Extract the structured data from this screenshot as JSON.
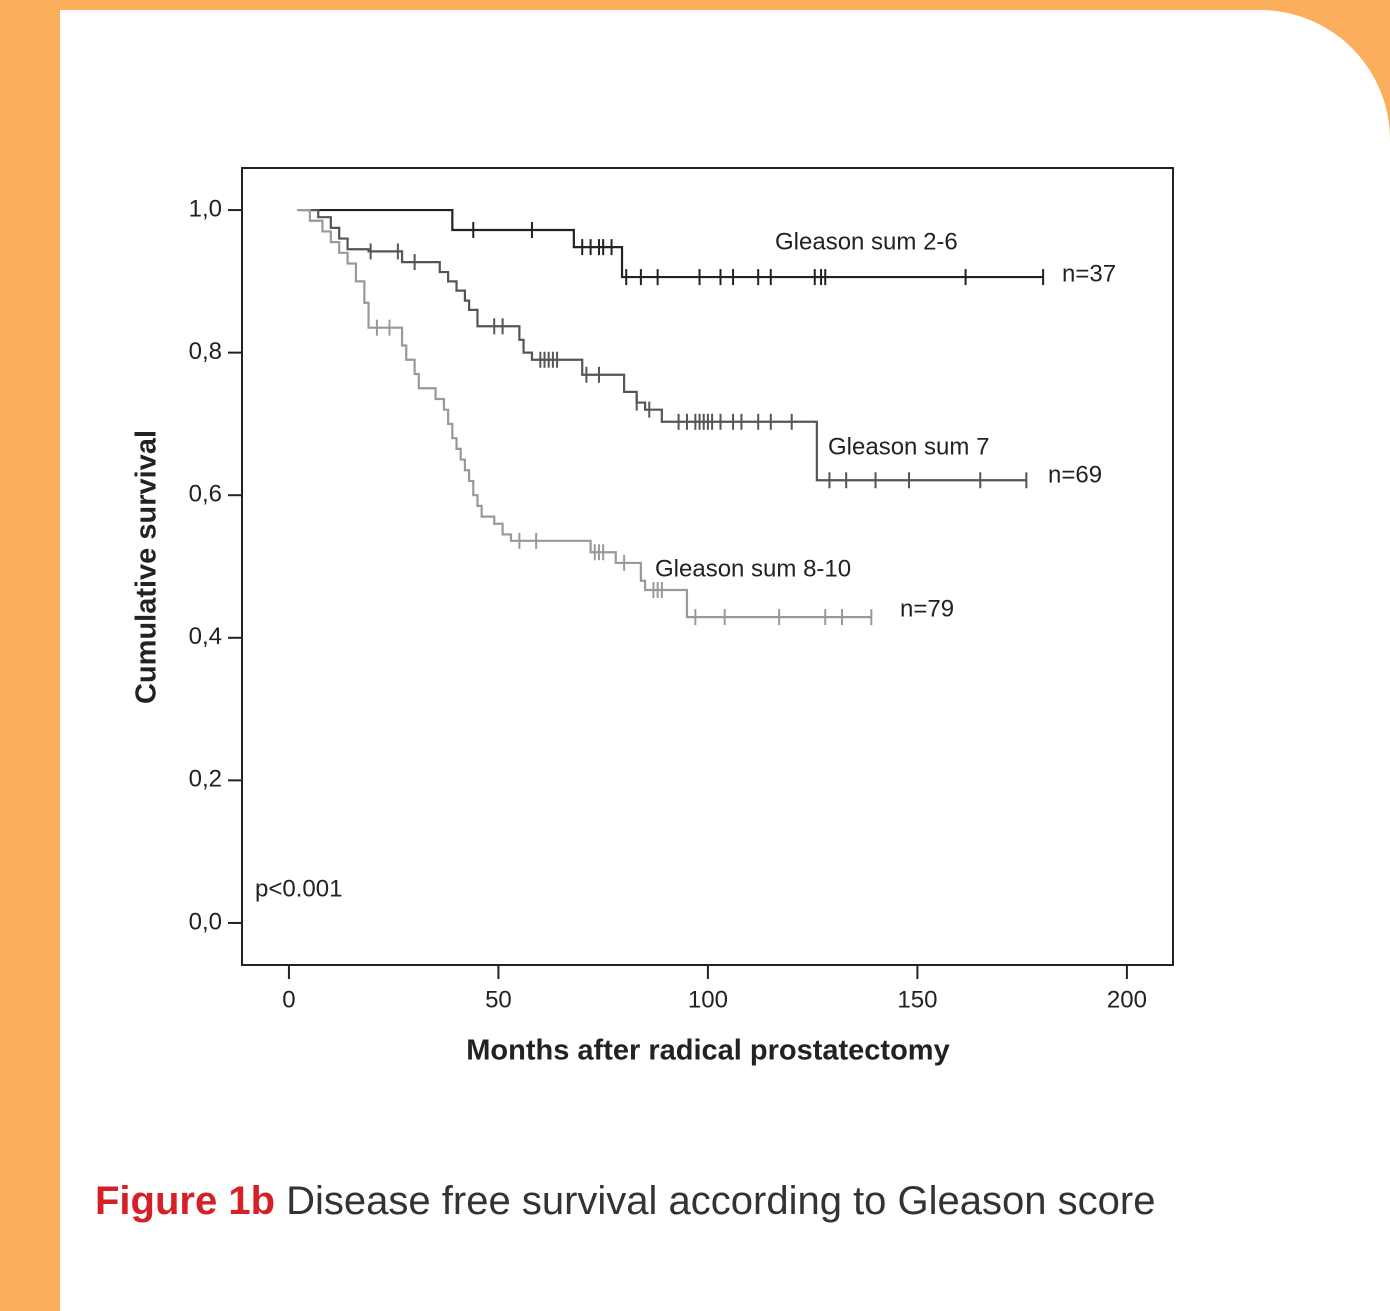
{
  "chart_data": {
    "type": "step",
    "xlabel": "Months after radical prostatectomy",
    "ylabel": "Cumulative survival",
    "xlim": [
      -11.2,
      211
    ],
    "ylim": [
      -0.059,
      1.059
    ],
    "xticks": [
      0,
      50,
      100,
      150,
      200
    ],
    "yticks": [
      {
        "value": 0,
        "label": "0,0"
      },
      {
        "value": 0.2,
        "label": "0,2"
      },
      {
        "value": 0.4,
        "label": "0,4"
      },
      {
        "value": 0.6,
        "label": "0,6"
      },
      {
        "value": 0.8,
        "label": "0,8"
      },
      {
        "value": 1,
        "label": "1,0"
      }
    ],
    "annotation": "p<0.001",
    "series": [
      {
        "name": "Gleason sum 2-6",
        "n_label": "n=37",
        "color": "#222222",
        "x": [
          3,
          39,
          68,
          79.5,
          180
        ],
        "values": [
          1.0,
          0.972,
          0.948,
          0.906,
          0.906
        ],
        "censored": [
          44,
          58,
          70,
          72,
          74,
          75,
          77,
          80.5,
          84,
          88,
          98,
          103,
          106,
          112,
          115,
          125.5,
          127,
          128,
          161.5,
          180
        ]
      },
      {
        "name": "Gleason sum 7",
        "n_label": "n=69",
        "color": "#555555",
        "x": [
          2,
          7,
          10,
          12,
          14,
          19,
          27,
          36,
          38,
          40,
          42,
          43,
          45,
          55,
          56,
          58,
          70,
          80,
          83,
          85,
          89,
          126,
          176
        ],
        "values": [
          1.0,
          0.99,
          0.975,
          0.96,
          0.945,
          0.942,
          0.927,
          0.913,
          0.9,
          0.887,
          0.873,
          0.86,
          0.837,
          0.818,
          0.8,
          0.79,
          0.769,
          0.745,
          0.73,
          0.72,
          0.703,
          0.621,
          0.621
        ],
        "censored": [
          19.5,
          26,
          30,
          49,
          51,
          60,
          61,
          62,
          63,
          64,
          71,
          74,
          83,
          86,
          93,
          95,
          97,
          98,
          99,
          100,
          101,
          103,
          106,
          108,
          112,
          115,
          120,
          129,
          133,
          140,
          148,
          165,
          176
        ]
      },
      {
        "name": "Gleason sum 8-10",
        "n_label": "n=79",
        "color": "#999999",
        "x": [
          2,
          5,
          8,
          10,
          12,
          14,
          16,
          18,
          19,
          27,
          28,
          30,
          31,
          35,
          37,
          38,
          39,
          40,
          41,
          42,
          43,
          44,
          45,
          46,
          49,
          51,
          53,
          72,
          78,
          84,
          85,
          95,
          139
        ],
        "values": [
          1.0,
          0.985,
          0.97,
          0.955,
          0.94,
          0.925,
          0.9,
          0.87,
          0.835,
          0.81,
          0.79,
          0.77,
          0.75,
          0.735,
          0.72,
          0.7,
          0.68,
          0.665,
          0.65,
          0.635,
          0.62,
          0.6,
          0.585,
          0.57,
          0.56,
          0.545,
          0.536,
          0.52,
          0.505,
          0.48,
          0.467,
          0.429,
          0.429
        ],
        "censored": [
          21,
          24,
          55,
          59,
          73,
          74,
          75,
          80,
          87,
          88,
          89,
          97,
          104,
          117,
          128,
          132,
          139
        ]
      }
    ]
  },
  "caption": {
    "label": "Figure 1b",
    "text": "Disease free survival according to Gleason score"
  }
}
